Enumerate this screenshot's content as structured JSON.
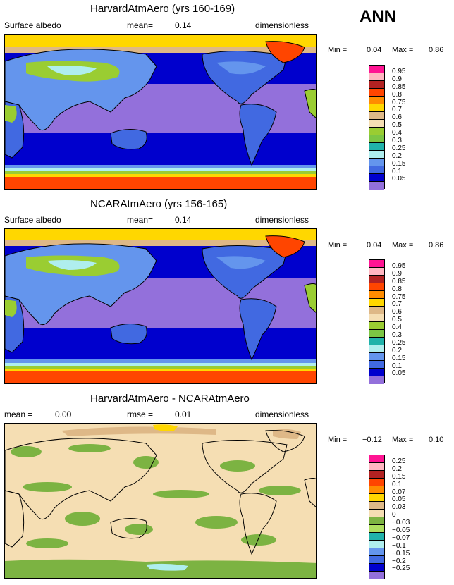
{
  "season": "ANN",
  "panels": [
    {
      "title": "HarvardAtmAero (yrs 160-169)",
      "left_label": "Surface albedo",
      "mid_label": "mean=",
      "mid_value": "0.14",
      "right_label": "dimensionless",
      "min_label": "Min =",
      "min_value": "0.04",
      "max_label": "Max =",
      "max_value": "0.86"
    },
    {
      "title": "NCARAtmAero (yrs 156-165)",
      "left_label": "Surface albedo",
      "mid_label": "mean=",
      "mid_value": "0.14",
      "right_label": "dimensionless",
      "min_label": "Min =",
      "min_value": "0.04",
      "max_label": "Max =",
      "max_value": "0.86"
    },
    {
      "title": "HarvardAtmAero - NCARAtmAero",
      "left_label": "mean =",
      "left_value": "0.00",
      "mid_label": "rmse =",
      "mid_value": "0.01",
      "right_label": "dimensionless",
      "min_label": "Min =",
      "min_value": "−0.12",
      "max_label": "Max =",
      "max_value": "0.10"
    }
  ],
  "colorbar_abs": {
    "labels": [
      "0.95",
      "0.9",
      "0.85",
      "0.8",
      "0.75",
      "0.7",
      "0.6",
      "0.5",
      "0.4",
      "0.3",
      "0.25",
      "0.2",
      "0.15",
      "0.1",
      "0.05"
    ],
    "colors": [
      "#ff1493",
      "#ffb6c1",
      "#b22222",
      "#ff4500",
      "#ff8c00",
      "#ffd700",
      "#deb887",
      "#f5deb3",
      "#9acd32",
      "#7cc644",
      "#20b2aa",
      "#afeeee",
      "#6495ed",
      "#4169e1",
      "#0000cd",
      "#9370db"
    ]
  },
  "colorbar_diff": {
    "labels": [
      "0.25",
      "0.2",
      "0.15",
      "0.1",
      "0.07",
      "0.05",
      "0.03",
      "0",
      "−0.03",
      "−0.05",
      "−0.07",
      "−0.1",
      "−0.15",
      "−0.2",
      "−0.25"
    ],
    "colors": [
      "#ff1493",
      "#ffb6c1",
      "#b22222",
      "#ff4500",
      "#ff8c00",
      "#ffd700",
      "#deb887",
      "#f5deb3",
      "#7cb342",
      "#adde5f",
      "#20b2aa",
      "#afeeee",
      "#6495ed",
      "#4169e1",
      "#0000cd",
      "#9370db"
    ]
  }
}
